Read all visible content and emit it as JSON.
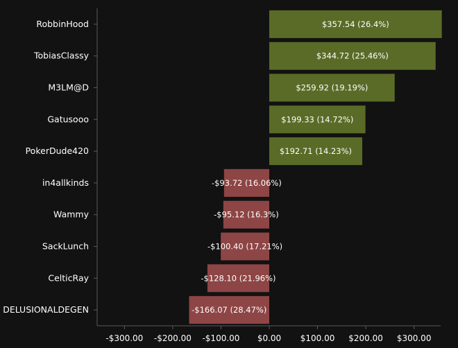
{
  "chart_data": {
    "type": "bar",
    "orientation": "horizontal",
    "categories": [
      "RobbinHood",
      "TobiasClassy",
      "M3LM@D",
      "Gatusooo",
      "PokerDude420",
      "in4allkinds",
      "Wammy",
      "SackLunch",
      "CelticRay",
      "DELUSIONALDEGEN"
    ],
    "values": [
      357.54,
      344.72,
      259.92,
      199.33,
      192.71,
      -93.72,
      -95.12,
      -100.4,
      -128.1,
      -166.07
    ],
    "data_labels": [
      "$357.54 (26.4%)",
      "$344.72 (25.46%)",
      "$259.92 (19.19%)",
      "$199.33 (14.72%)",
      "$192.71 (14.23%)",
      "-$93.72 (16.06%)",
      "-$95.12 (16.3%)",
      "-$100.40 (17.21%)",
      "-$128.10 (21.96%)",
      "-$166.07 (28.47%)"
    ],
    "xlim": [
      -360,
      360
    ],
    "x_ticks": [
      -300,
      -200,
      -100,
      0,
      100,
      200,
      300
    ],
    "x_tick_labels": [
      "-$300.00",
      "-$200.00",
      "-$100.00",
      "$0.00",
      "$100.00",
      "$200.00",
      "$300.00"
    ],
    "title": "",
    "xlabel": "",
    "ylabel": "",
    "grid": false,
    "legend": "none",
    "colors": {
      "positive": "#5a6b27",
      "negative": "#8e4545",
      "background": "#121212",
      "text": "#ffffff",
      "axis": "#5a5a5a"
    }
  }
}
